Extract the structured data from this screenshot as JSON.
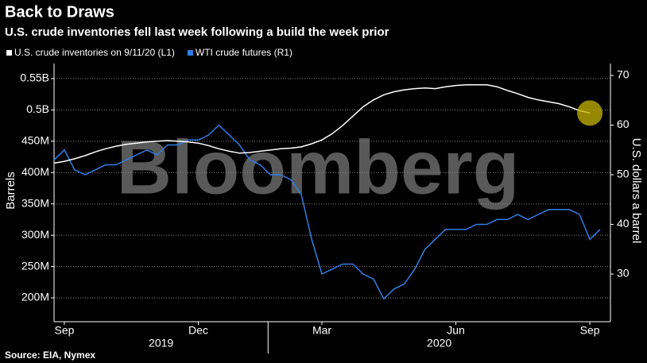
{
  "chart_data": {
    "type": "line",
    "title": "Back to Draws",
    "subtitle": "U.S. crude inventories fell last week following a build the week prior",
    "watermark": "Bloomberg",
    "source": "Source: EIA, Nymex",
    "ylabel": "Barrels",
    "y2label": "U.S. dollars a barrel",
    "years": [
      "2019",
      "2020"
    ],
    "categories": [
      null,
      "Sep",
      null,
      null,
      null,
      null,
      null,
      null,
      null,
      null,
      null,
      null,
      null,
      null,
      "Dec",
      null,
      null,
      null,
      null,
      null,
      null,
      null,
      null,
      null,
      null,
      null,
      "Mar",
      null,
      null,
      null,
      null,
      null,
      null,
      null,
      null,
      null,
      null,
      null,
      null,
      "Jun",
      null,
      null,
      null,
      null,
      null,
      null,
      null,
      null,
      null,
      null,
      null,
      null,
      "Sep",
      null,
      null
    ],
    "series": [
      {
        "name": "U.S. crude inventories on 9/11/20 (L1)",
        "color": "#ffffff",
        "axis": "y",
        "values": [
          415000000,
          418000000,
          422000000,
          427000000,
          433000000,
          438000000,
          442000000,
          445000000,
          447000000,
          449000000,
          450000000,
          451000000,
          450000000,
          449000000,
          447000000,
          443000000,
          438000000,
          434000000,
          431000000,
          432000000,
          434000000,
          436000000,
          438000000,
          439000000,
          441000000,
          446000000,
          452000000,
          462000000,
          475000000,
          490000000,
          505000000,
          516000000,
          524000000,
          529000000,
          532000000,
          534000000,
          535000000,
          534000000,
          537000000,
          539000000,
          540000000,
          540000000,
          540000000,
          537000000,
          531000000,
          526000000,
          520000000,
          516000000,
          513000000,
          510000000,
          505000000,
          499000000,
          495000000,
          null,
          null
        ]
      },
      {
        "name": "WTI crude futures (R1)",
        "color": "#2f7fe8",
        "axis": "y2",
        "values": [
          53,
          55,
          51,
          50,
          51,
          52,
          52,
          53,
          54,
          55,
          54,
          56,
          56,
          57,
          57,
          58,
          60,
          58,
          56,
          53,
          52,
          50,
          50,
          49,
          46,
          37,
          30,
          31,
          32,
          32,
          30,
          29,
          25,
          27,
          28,
          31,
          35,
          37,
          39,
          39,
          39,
          40,
          40,
          41,
          41,
          42,
          41,
          42,
          43,
          43,
          43,
          42,
          37,
          39,
          null
        ]
      }
    ],
    "ylim": [
      162000000,
      574000000
    ],
    "yticks": [
      {
        "value": 200000000,
        "label": "200M"
      },
      {
        "value": 250000000,
        "label": "250M"
      },
      {
        "value": 300000000,
        "label": "300M"
      },
      {
        "value": 350000000,
        "label": "350M"
      },
      {
        "value": 400000000,
        "label": "400M"
      },
      {
        "value": 450000000,
        "label": "450M"
      },
      {
        "value": 500000000,
        "label": "0.5B"
      },
      {
        "value": 550000000,
        "label": "0.55B"
      }
    ],
    "y2lim": [
      20.4,
      72.4
    ],
    "y2ticks": [
      30,
      40,
      50,
      60,
      70
    ],
    "grid": true,
    "highlight_color": "#c8b400"
  }
}
